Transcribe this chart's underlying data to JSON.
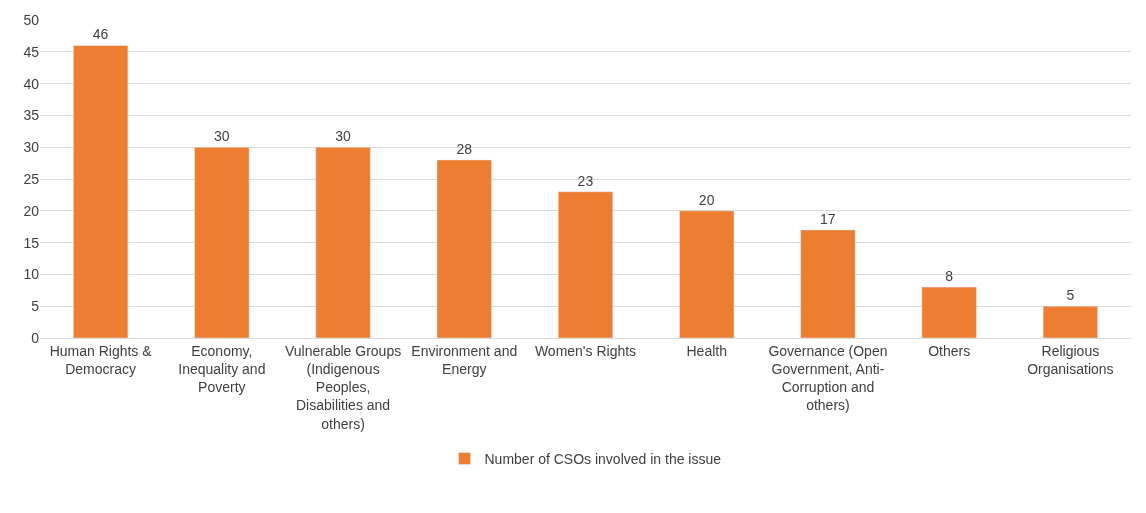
{
  "chart_data": {
    "type": "bar",
    "categories": [
      "Human Rights & Democracy",
      "Economy, Inequality and Poverty",
      "Vulnerable Groups (Indigenous Peoples, Disabilities and others)",
      "Environment and Energy",
      "Women's Rights",
      "Health",
      "Governance (Open Government, Anti-Corruption and others)",
      "Others",
      "Religious Organisations"
    ],
    "series": [
      {
        "name": "Number of CSOs involved in the issue",
        "color": "#ed7d31",
        "values": [
          46,
          30,
          30,
          28,
          23,
          20,
          17,
          8,
          5
        ]
      }
    ],
    "ylim": [
      0,
      50
    ],
    "yticks": [
      0,
      5,
      10,
      15,
      20,
      25,
      30,
      35,
      40,
      45,
      50
    ],
    "grid": "y",
    "legend": "bottom",
    "data_labels": true
  }
}
